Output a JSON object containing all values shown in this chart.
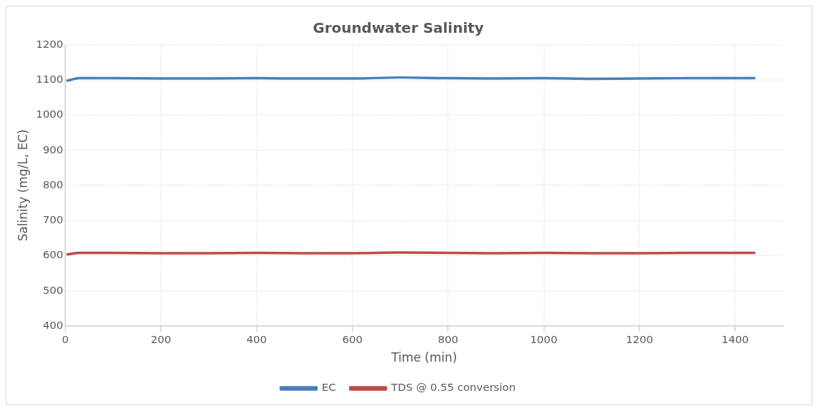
{
  "chart_data": {
    "type": "line",
    "title": "Groundwater Salinity",
    "xlabel": "Time (min)",
    "ylabel": "Salinity (mg/L, EC)",
    "xlim": [
      0,
      1500
    ],
    "xticks": [
      0,
      200,
      400,
      600,
      800,
      1000,
      1200,
      1400
    ],
    "ylim": [
      400,
      1200
    ],
    "yticks": [
      400,
      500,
      600,
      700,
      800,
      900,
      1000,
      1100,
      1200
    ],
    "grid": true,
    "legend": "bottom",
    "marker": "none",
    "line_style": "solid",
    "series": [
      {
        "name": "EC",
        "color": "#4a7ebb",
        "x": [
          5,
          30,
          100,
          200,
          300,
          400,
          500,
          600,
          700,
          800,
          900,
          1000,
          1100,
          1200,
          1300,
          1440
        ],
        "values": [
          1098,
          1105,
          1105,
          1104,
          1104,
          1105,
          1104,
          1104,
          1107,
          1105,
          1104,
          1105,
          1103,
          1104,
          1105,
          1105
        ]
      },
      {
        "name": "TDS @ 0.55 conversion",
        "color": "#be4b48",
        "x": [
          5,
          30,
          100,
          200,
          300,
          400,
          500,
          600,
          700,
          800,
          900,
          1000,
          1100,
          1200,
          1300,
          1440
        ],
        "values": [
          604,
          608,
          608,
          607,
          607,
          608,
          607,
          607,
          609,
          608,
          607,
          608,
          607,
          607,
          608,
          608
        ]
      }
    ]
  }
}
